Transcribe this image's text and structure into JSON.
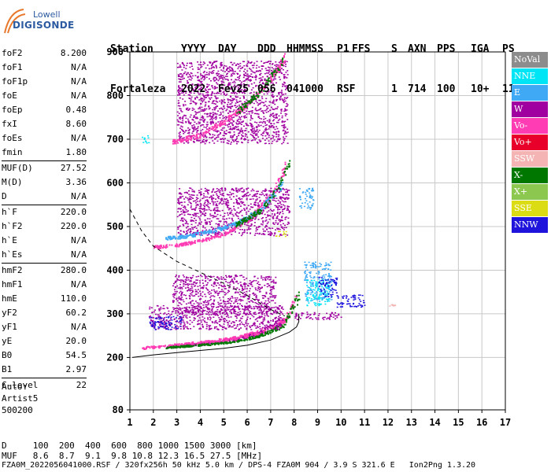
{
  "logo": {
    "line1": "Lowell",
    "line2": "DIGISONDE"
  },
  "header": {
    "labels": [
      "Station",
      "YYYY",
      "DAY",
      "DDD",
      "HHMMSS",
      "P1",
      "FFS",
      "S",
      "AXN",
      "PPS",
      "IGA",
      "PS"
    ],
    "values": [
      "Fortaleza",
      "2022",
      "Fev25",
      "056",
      "041000",
      "RSF",
      "",
      "1",
      "714",
      "100",
      "10+",
      "11"
    ]
  },
  "params": [
    [
      {
        "label": "foF2",
        "value": "8.200"
      },
      {
        "label": "foF1",
        "value": "N/A"
      },
      {
        "label": "foF1p",
        "value": "N/A"
      },
      {
        "label": "foE",
        "value": "N/A"
      },
      {
        "label": "foEp",
        "value": "0.48"
      },
      {
        "label": "fxI",
        "value": "8.60"
      },
      {
        "label": "foEs",
        "value": "N/A"
      },
      {
        "label": "fmin",
        "value": "1.80"
      }
    ],
    [
      {
        "label": "MUF(D)",
        "value": "27.52"
      },
      {
        "label": "M(D)",
        "value": "3.36"
      },
      {
        "label": "D",
        "value": "N/A"
      }
    ],
    [
      {
        "label": "h`F",
        "value": "220.0"
      },
      {
        "label": "h`F2",
        "value": "220.0"
      },
      {
        "label": "h`E",
        "value": "N/A"
      },
      {
        "label": "h`Es",
        "value": "N/A"
      }
    ],
    [
      {
        "label": "hmF2",
        "value": "280.0"
      },
      {
        "label": "hmF1",
        "value": "N/A"
      },
      {
        "label": "hmE",
        "value": "110.0"
      },
      {
        "label": "yF2",
        "value": "60.2"
      },
      {
        "label": "yF1",
        "value": "N/A"
      },
      {
        "label": "yE",
        "value": "20.0"
      },
      {
        "label": "B0",
        "value": "54.5"
      },
      {
        "label": "B1",
        "value": "2.97"
      }
    ],
    [
      {
        "label": "C-level",
        "value": "22"
      }
    ]
  ],
  "auto": {
    "line1": "Auto:",
    "line2": "Artist5",
    "line3": "500200"
  },
  "legend": [
    {
      "name": "NoVal",
      "color": "#8c8c8c"
    },
    {
      "name": "NNE",
      "color": "#00e5f5"
    },
    {
      "name": "E",
      "color": "#3fa9f5"
    },
    {
      "name": "W",
      "color": "#a000a0"
    },
    {
      "name": "Vo-",
      "color": "#ff3cb4"
    },
    {
      "name": "Vo+",
      "color": "#e8002a"
    },
    {
      "name": "SSW",
      "color": "#f5b4b4"
    },
    {
      "name": "X-",
      "color": "#007800"
    },
    {
      "name": "X+",
      "color": "#8cc850"
    },
    {
      "name": "SSE",
      "color": "#dcdc14"
    },
    {
      "name": "NNW",
      "color": "#1e14dc"
    }
  ],
  "footer": {
    "d_row": "D     100  200  400  600  800 1000 1500 3000 [km]",
    "muf_row": "MUF   8.6  8.7  9.1  9.8 10.8 12.3 16.5 27.5 [MHz]",
    "file_row": "FZA0M_2022056041000.RSF / 320fx256h 50 kHz 5.0 km / DPS-4 FZA0M 904 / 3.9 S 321.6 E   Ion2Png 1.3.20"
  },
  "chart_data": {
    "type": "scatter",
    "title": "",
    "xlabel": "",
    "ylabel": "",
    "xlim": [
      1,
      17
    ],
    "ylim": [
      80,
      900
    ],
    "x_ticks": [
      1,
      2,
      3,
      4,
      5,
      6,
      7,
      8,
      9,
      10,
      11,
      12,
      13,
      14,
      15,
      16,
      17
    ],
    "y_ticks": [
      80,
      200,
      300,
      400,
      500,
      600,
      700,
      800,
      900
    ],
    "grid": true,
    "clusters": [
      {
        "series": "W",
        "type": "band",
        "x": [
          2.5,
          3.5,
          4.5,
          5.5,
          6.5,
          7.6
        ],
        "y_low": [
          222,
          227,
          232,
          240,
          252,
          275
        ],
        "y_high": [
          228,
          233,
          238,
          247,
          262,
          298
        ]
      },
      {
        "series": "Vo-",
        "type": "band",
        "x": [
          1.5,
          2.5,
          3.5,
          4.5,
          5.5,
          6.5,
          7.5,
          8.1
        ],
        "y_low": [
          220,
          225,
          230,
          235,
          242,
          255,
          275,
          320
        ],
        "y_high": [
          226,
          230,
          236,
          242,
          250,
          265,
          290,
          350
        ]
      },
      {
        "series": "X-",
        "type": "band",
        "x": [
          2.5,
          3.5,
          4.5,
          5.5,
          6.5,
          7.5,
          8.2
        ],
        "y_low": [
          222,
          226,
          230,
          236,
          248,
          268,
          330
        ],
        "y_high": [
          226,
          230,
          234,
          240,
          254,
          278,
          360
        ]
      },
      {
        "series": "W",
        "type": "region",
        "x_range": [
          1.8,
          7.5
        ],
        "y_range": [
          265,
          320
        ]
      },
      {
        "series": "NNW",
        "type": "region",
        "x_range": [
          1.8,
          3.2
        ],
        "y_range": [
          265,
          295
        ]
      },
      {
        "series": "W",
        "type": "region",
        "x_range": [
          2.8,
          7.2
        ],
        "y_range": [
          300,
          390
        ]
      },
      {
        "series": "E",
        "type": "region",
        "x_range": [
          8.4,
          9.6
        ],
        "y_range": [
          330,
          420
        ]
      },
      {
        "series": "NNE",
        "type": "region",
        "x_range": [
          8.5,
          9.5
        ],
        "y_range": [
          320,
          380
        ]
      },
      {
        "series": "W",
        "type": "region",
        "x_range": [
          8.0,
          10.0
        ],
        "y_range": [
          288,
          305
        ]
      },
      {
        "series": "NNW",
        "type": "region",
        "x_range": [
          9.8,
          11.0
        ],
        "y_range": [
          315,
          345
        ]
      },
      {
        "series": "NNW",
        "type": "region",
        "x_range": [
          9.0,
          9.8
        ],
        "y_range": [
          340,
          385
        ]
      },
      {
        "series": "W",
        "type": "region",
        "x_range": [
          3.0,
          7.8
        ],
        "y_range": [
          480,
          590
        ]
      },
      {
        "series": "Vo-",
        "type": "band",
        "x": [
          2.0,
          3.0,
          4.0,
          5.0,
          6.0,
          7.0,
          7.6
        ],
        "y_low": [
          450,
          455,
          465,
          480,
          510,
          560,
          620
        ],
        "y_high": [
          458,
          462,
          472,
          488,
          522,
          578,
          650
        ]
      },
      {
        "series": "E",
        "type": "band",
        "x": [
          2.5,
          3.5,
          4.5,
          5.5,
          6.5,
          7.5
        ],
        "y_low": [
          470,
          476,
          487,
          503,
          532,
          590
        ],
        "y_high": [
          478,
          484,
          495,
          512,
          544,
          610
        ]
      },
      {
        "series": "X-",
        "type": "band",
        "x": [
          5.5,
          6.5,
          7.3,
          7.8
        ],
        "y_low": [
          500,
          530,
          580,
          640
        ],
        "y_high": [
          510,
          542,
          598,
          660
        ]
      },
      {
        "series": "W",
        "type": "region",
        "x_range": [
          3.0,
          7.7
        ],
        "y_range": [
          690,
          880
        ]
      },
      {
        "series": "Vo-",
        "type": "band",
        "x": [
          2.8,
          4.0,
          5.0,
          6.0,
          7.0,
          7.6
        ],
        "y_low": [
          690,
          705,
          735,
          775,
          830,
          880
        ],
        "y_high": [
          700,
          716,
          748,
          790,
          848,
          900
        ]
      },
      {
        "series": "X-",
        "type": "band",
        "x": [
          5.5,
          6.5,
          7.5
        ],
        "y_low": [
          755,
          800,
          870
        ],
        "y_high": [
          768,
          815,
          890
        ]
      },
      {
        "series": "E",
        "type": "region",
        "x_range": [
          8.2,
          8.8
        ],
        "y_range": [
          540,
          590
        ]
      },
      {
        "series": "SSE",
        "type": "region",
        "x_range": [
          7.2,
          7.7
        ],
        "y_range": [
          478,
          490
        ]
      },
      {
        "series": "SSW",
        "type": "region",
        "x_range": [
          12.0,
          12.3
        ],
        "y_range": [
          318,
          324
        ]
      },
      {
        "series": "NNE",
        "type": "region",
        "x_range": [
          1.5,
          1.8
        ],
        "y_range": [
          690,
          710
        ]
      }
    ],
    "profile_solid": {
      "x": [
        1.1,
        2,
        3,
        4,
        5,
        6,
        7,
        7.8,
        8.1,
        8.2,
        8.2
      ],
      "y": [
        200,
        206,
        211,
        216,
        221,
        228,
        240,
        258,
        270,
        282,
        300
      ]
    },
    "profile_dashed": {
      "x": [
        1.0,
        1.5,
        2.0,
        3.0,
        4.0,
        5.0,
        6.0,
        7.0,
        7.6
      ],
      "y": [
        540,
        490,
        455,
        420,
        395,
        370,
        342,
        310,
        295
      ]
    }
  }
}
